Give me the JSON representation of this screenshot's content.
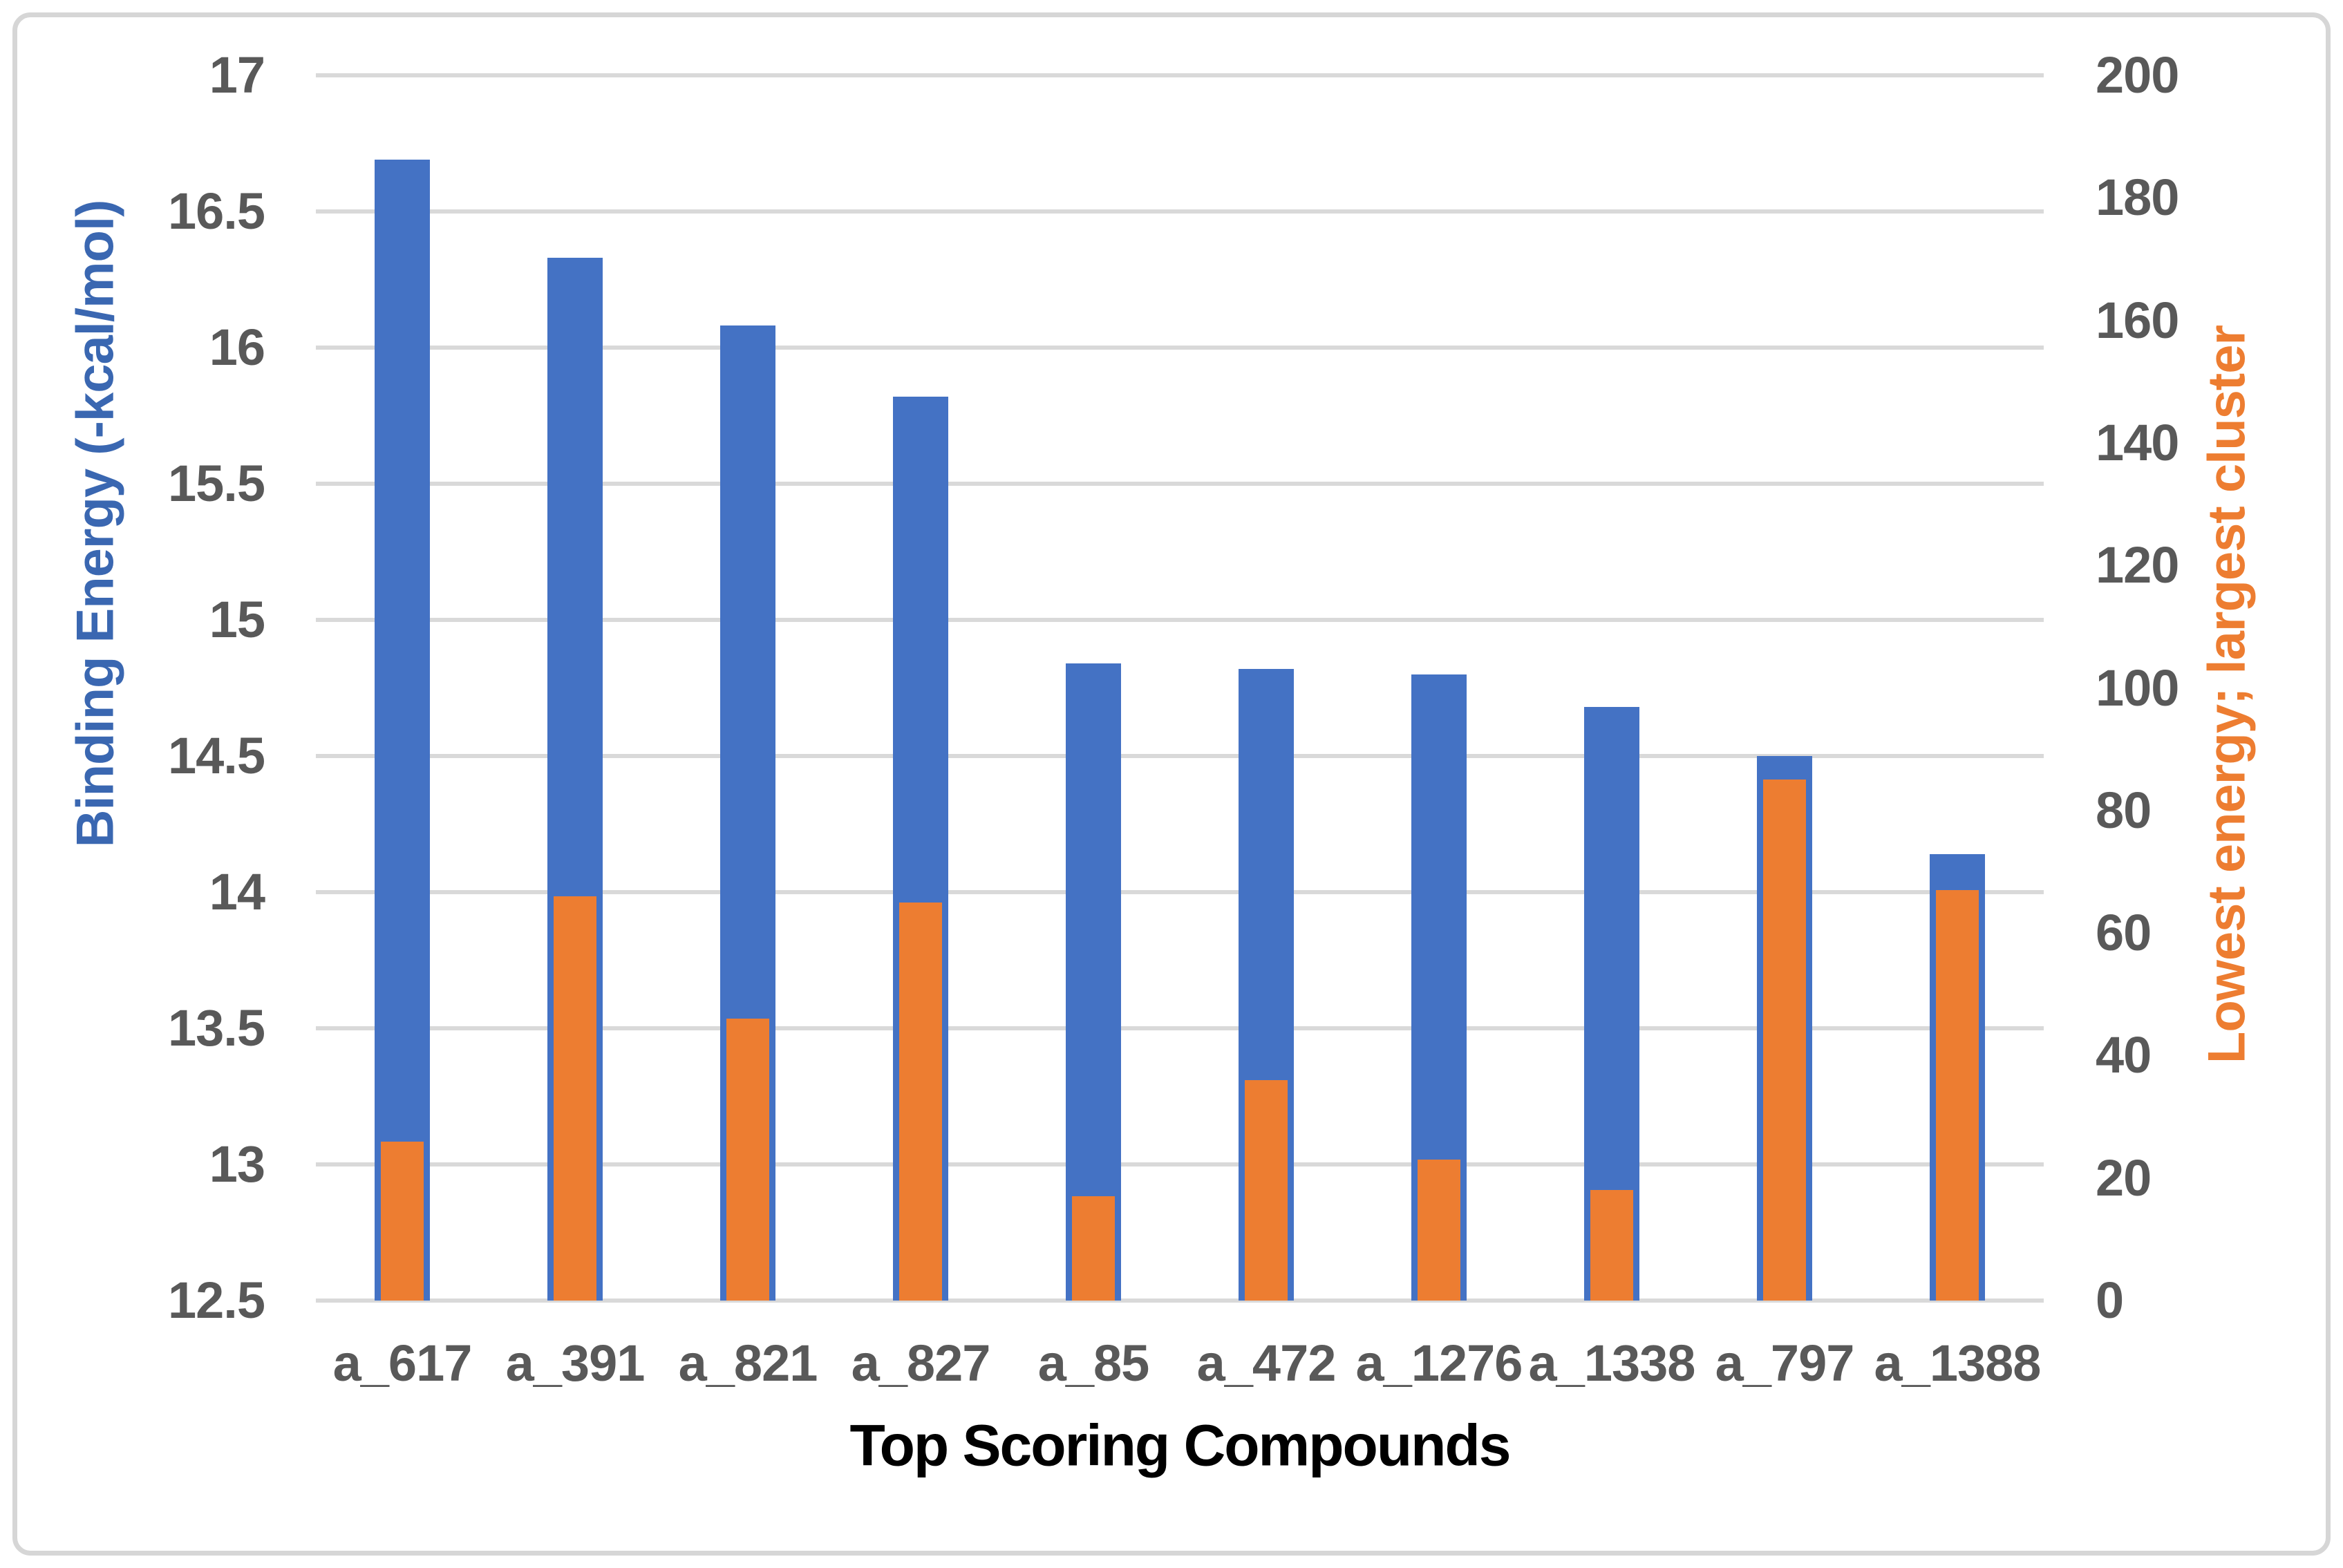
{
  "chart_data": {
    "type": "bar",
    "title": "",
    "xlabel": "Top Scoring Compounds",
    "ylabel_left": "Binding Energy (-kcal/mol)",
    "ylabel_right": "Lowest energy; largest cluster",
    "categories": [
      "a_617",
      "a_391",
      "a_821",
      "a_827",
      "a_85",
      "a_472",
      "a_1276",
      "a_1338",
      "a_797",
      "a_1388"
    ],
    "series": [
      {
        "name": "Binding Energy (-kcal/mol)",
        "axis": "left",
        "color": "#4472C4",
        "values": [
          16.69,
          16.33,
          16.08,
          15.82,
          14.84,
          14.82,
          14.8,
          14.68,
          14.5,
          14.14
        ]
      },
      {
        "name": "Lowest energy; largest cluster",
        "axis": "right",
        "color": "#ED7D31",
        "values": [
          26,
          66,
          46,
          65,
          17,
          36,
          23,
          18,
          85,
          67
        ]
      }
    ],
    "y_left_range": [
      12.5,
      17
    ],
    "y_left_ticks": [
      "17",
      "16.5",
      "16",
      "15.5",
      "15",
      "14.5",
      "14",
      "13.5",
      "13",
      "12.5"
    ],
    "y_right_range": [
      0,
      200
    ],
    "y_right_ticks": [
      "200",
      "180",
      "160",
      "140",
      "120",
      "100",
      "80",
      "60",
      "40",
      "20",
      "0"
    ],
    "grid": true,
    "legend_position": "none"
  },
  "colors": {
    "series_blue": "#4472C4",
    "series_orange": "#ED7D31",
    "left_title_blue": "#3A67B1",
    "right_title_orange": "#ED7D31",
    "tick_text": "#595959",
    "gridline": "#D9D9D9",
    "frame_border": "#D6D6D6",
    "x_title_text": "#000000"
  }
}
